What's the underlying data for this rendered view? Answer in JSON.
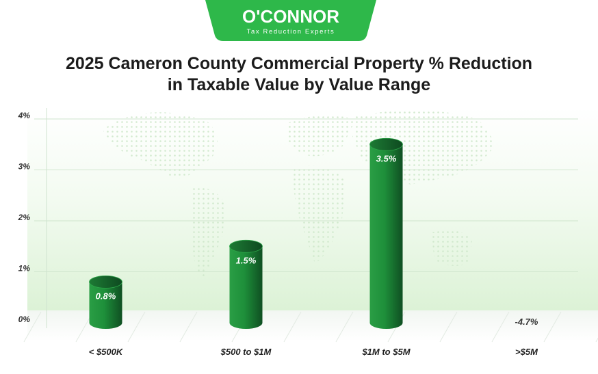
{
  "brand": {
    "name": "O'CONNOR",
    "tagline": "Tax Reduction Experts",
    "color": "#2eb84a"
  },
  "chart_data": {
    "type": "bar",
    "title_line1": "2025 Cameron County Commercial Property % Reduction",
    "title_line2": "in Taxable Value by Value Range",
    "categories": [
      "< $500K",
      "$500 to $1M",
      "$1M to $5M",
      ">$5M"
    ],
    "values": [
      0.8,
      1.5,
      3.5,
      -4.7
    ],
    "data_labels": [
      "0.8%",
      "1.5%",
      "3.5%",
      "-4.7%"
    ],
    "yticks": [
      "0%",
      "1%",
      "2%",
      "3%",
      "4%"
    ],
    "ylim": [
      0,
      4
    ],
    "grid": true,
    "bar_color": "#1e8f3a"
  }
}
